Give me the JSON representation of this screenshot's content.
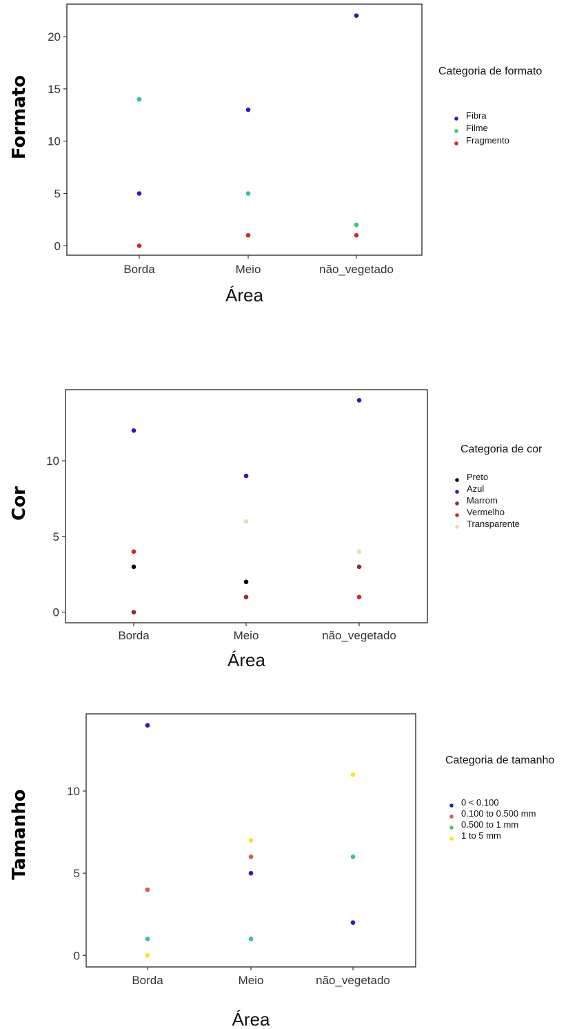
{
  "chart_data": [
    {
      "type": "scatter",
      "ylabel": "Formato",
      "xlabel": "Área",
      "categories": [
        "Borda",
        "Meio",
        "não_vegetado"
      ],
      "yticks": [
        0,
        5,
        10,
        15,
        20
      ],
      "ylim": [
        -0.9,
        23.1
      ],
      "legend_title": "Categoria de formato",
      "legend_position": "right",
      "grid": false,
      "series": [
        {
          "name": "Fibra",
          "color": "#1f1fbf",
          "values": [
            5,
            13,
            22
          ]
        },
        {
          "name": "Filme",
          "color": "#3cc47c",
          "values": [
            14,
            5,
            2
          ]
        },
        {
          "name": "Fragmento",
          "color": "#d9261c",
          "values": [
            0,
            1,
            1
          ]
        }
      ]
    },
    {
      "type": "scatter",
      "ylabel": "Cor",
      "xlabel": "Área",
      "categories": [
        "Borda",
        "Meio",
        "não_vegetado"
      ],
      "yticks": [
        0,
        5,
        10
      ],
      "ylim": [
        -0.7,
        14.7
      ],
      "legend_title": "Categoria de cor",
      "legend_position": "right",
      "grid": false,
      "series": [
        {
          "name": "Preto",
          "color": "#000000",
          "values": [
            3,
            2,
            null
          ]
        },
        {
          "name": "Azul",
          "color": "#1f1fbf",
          "values": [
            12,
            9,
            14
          ]
        },
        {
          "name": "Marrom",
          "color": "#8b2f2f",
          "values": [
            0,
            1,
            3
          ]
        },
        {
          "name": "Vermelho",
          "color": "#d9261c",
          "values": [
            4,
            null,
            1
          ]
        },
        {
          "name": "Transparente",
          "color": "#f0d9b5",
          "values": [
            null,
            6,
            4
          ]
        }
      ]
    },
    {
      "type": "scatter",
      "ylabel": "Tamanho",
      "xlabel": "Área",
      "categories": [
        "Borda",
        "Meio",
        "não_vegetado"
      ],
      "yticks": [
        0,
        5,
        10
      ],
      "ylim": [
        -0.7,
        14.7
      ],
      "legend_title": "Categoria de tamanho",
      "legend_position": "right",
      "grid": false,
      "series": [
        {
          "name": "0 < 0.100",
          "color": "#1f1fbf",
          "values": [
            14,
            5,
            2
          ]
        },
        {
          "name": "0.100 to 0.500 mm",
          "color": "#e5544f",
          "values": [
            4,
            6,
            null
          ]
        },
        {
          "name": "0.500 to 1 mm",
          "color": "#3cc47c",
          "values": [
            1,
            1,
            6
          ]
        },
        {
          "name": "1 to 5 mm",
          "color": "#f5e61c",
          "values": [
            0,
            7,
            11
          ]
        }
      ]
    }
  ]
}
